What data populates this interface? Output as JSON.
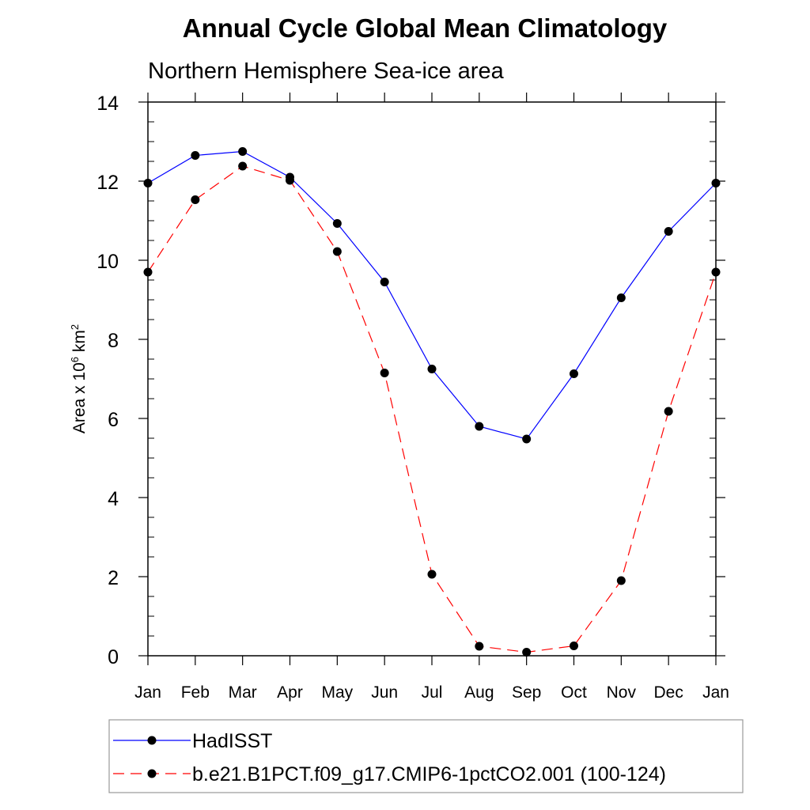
{
  "chart_data": {
    "type": "line",
    "title": "Annual Cycle Global Mean Climatology",
    "subtitle": "Northern Hemisphere Sea-ice area",
    "ylabel": {
      "prefix": "Area x 10",
      "exp1": "6",
      "middle": " km",
      "exp2": "2"
    },
    "xlabel": "",
    "categories": [
      "Jan",
      "Feb",
      "Mar",
      "Apr",
      "May",
      "Jun",
      "Jul",
      "Aug",
      "Sep",
      "Oct",
      "Nov",
      "Dec",
      "Jan"
    ],
    "ylim": [
      0,
      14
    ],
    "yticks": [
      0,
      2,
      4,
      6,
      8,
      10,
      12,
      14
    ],
    "yminor_step": 0.5,
    "series": [
      {
        "name": "HadISST",
        "color": "#0000ff",
        "dash": "solid",
        "values": [
          11.95,
          12.65,
          12.75,
          12.1,
          10.93,
          9.45,
          7.25,
          5.8,
          5.48,
          7.13,
          9.05,
          10.73,
          11.95
        ]
      },
      {
        "name": "b.e21.B1PCT.f09_g17.CMIP6-1pctCO2.001 (100-124)",
        "color": "#ff0000",
        "dash": "dashed",
        "values": [
          9.7,
          11.53,
          12.38,
          12.02,
          10.22,
          7.15,
          2.06,
          0.24,
          0.09,
          0.25,
          1.9,
          6.18,
          9.7
        ]
      }
    ],
    "marker_color": "#000000",
    "legend_position": "bottom"
  }
}
